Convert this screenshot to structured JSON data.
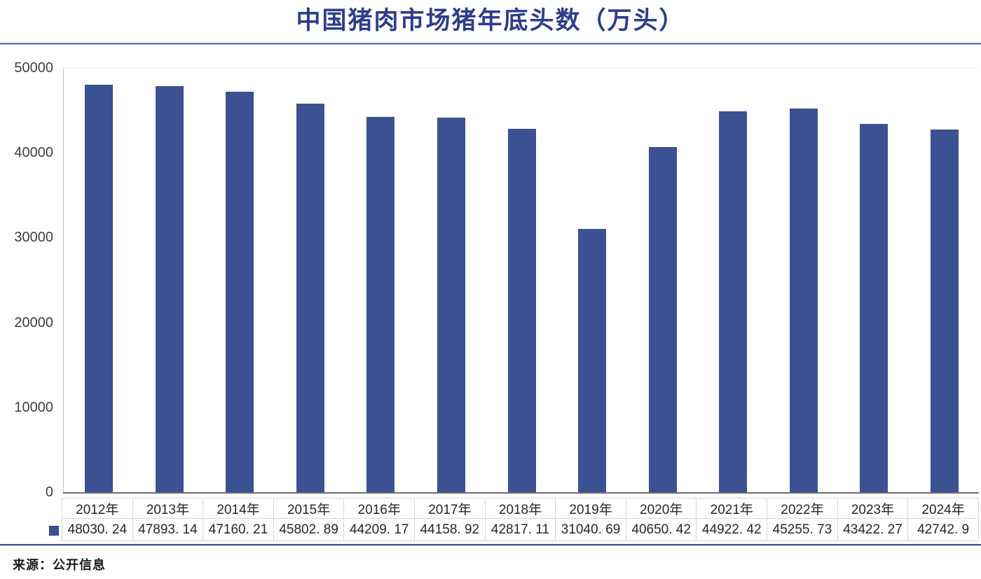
{
  "title": "中国猪肉市场猪年底头数（万头）",
  "source_note": "来源：公开信息",
  "colors": {
    "bar": "#3c5192",
    "title_accent": "#2c3d8c",
    "rule": "#3f4b9b"
  },
  "legend": {
    "marker_icon": "square-icon",
    "marker_color": "#3c5192"
  },
  "chart_data": {
    "type": "bar",
    "title": "中国猪肉市场猪年底头数（万头）",
    "xlabel": "",
    "ylabel": "",
    "categories": [
      "2012年",
      "2013年",
      "2014年",
      "2015年",
      "2016年",
      "2017年",
      "2018年",
      "2019年",
      "2020年",
      "2021年",
      "2022年",
      "2023年",
      "2024年"
    ],
    "values": [
      48030.24,
      47893.14,
      47160.21,
      45802.89,
      44209.17,
      44158.92,
      42817.11,
      31040.69,
      40650.42,
      44922.42,
      45255.73,
      43422.27,
      42742.9
    ],
    "display_values": [
      "48030. 24",
      "47893. 14",
      "47160. 21",
      "45802. 89",
      "44209. 17",
      "44158. 92",
      "42817. 11",
      "31040. 69",
      "40650. 42",
      "44922. 42",
      "45255. 73",
      "43422. 27",
      "42742. 9"
    ],
    "ylim": [
      0,
      50000
    ],
    "yticks": [
      0,
      10000,
      20000,
      30000,
      40000,
      50000
    ],
    "grid": false,
    "legend_position": "data-table-left",
    "data_table_shown": true
  }
}
